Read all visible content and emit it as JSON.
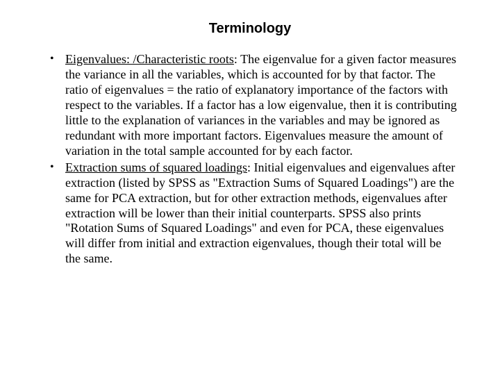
{
  "title": "Terminology",
  "bullets": [
    {
      "term": "Eigenvalues: /Characteristic roots",
      "body": ": The eigenvalue for a given factor measures the variance in all the variables, which is accounted for by that factor. The ratio of eigenvalues = the ratio of explanatory importance of the factors with respect to the variables. If a factor has a low eigenvalue, then it is contributing little to the explanation of variances in the variables and may be ignored as redundant with more important factors. Eigenvalues measure the amount of variation in the total sample accounted for by each factor."
    },
    {
      "term": "Extraction sums of squared loadings",
      "body": ": Initial eigenvalues and eigenvalues after extraction (listed by SPSS as \"Extraction Sums of Squared Loadings\") are the same for PCA extraction, but for other extraction methods, eigenvalues after extraction will be lower than their initial counterparts. SPSS also prints \"Rotation Sums of Squared Loadings\" and even for PCA, these eigenvalues will differ from initial and extraction eigenvalues, though their total will be the same."
    }
  ]
}
